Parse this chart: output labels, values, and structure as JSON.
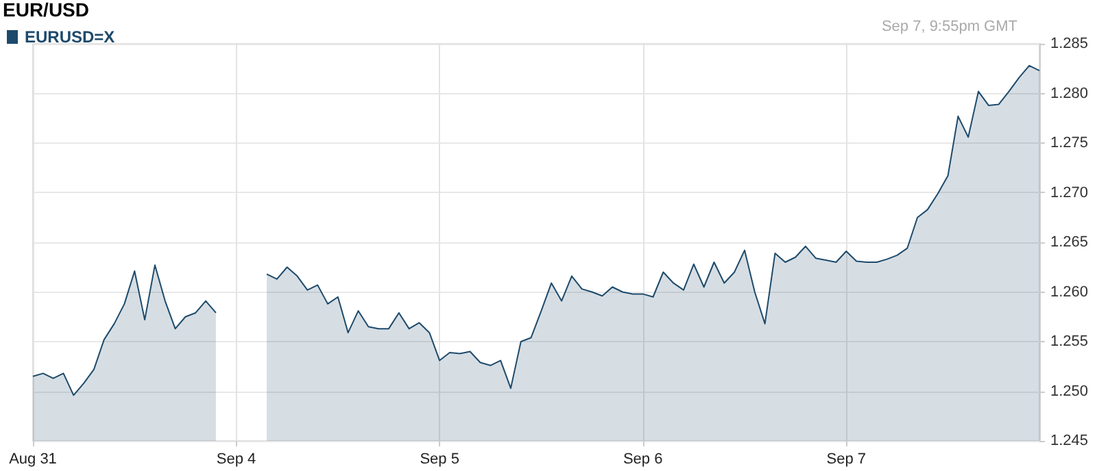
{
  "chart_data": {
    "type": "area",
    "title": "EUR/USD",
    "annotations": [
      "Sep 7, 9:55pm GMT"
    ],
    "legend": "top left",
    "grid": true,
    "marker": "none",
    "line_style": "solid",
    "categories": [
      "Aug 31",
      null,
      null,
      null,
      null,
      null,
      null,
      null,
      null,
      null,
      null,
      null,
      null,
      null,
      null,
      null,
      null,
      null,
      null,
      null,
      "Sep 4",
      null,
      null,
      null,
      null,
      null,
      null,
      null,
      null,
      null,
      null,
      null,
      null,
      null,
      null,
      null,
      null,
      null,
      null,
      null,
      "Sep 5",
      null,
      null,
      null,
      null,
      null,
      null,
      null,
      null,
      null,
      null,
      null,
      null,
      null,
      null,
      null,
      null,
      null,
      null,
      null,
      "Sep 6",
      null,
      null,
      null,
      null,
      null,
      null,
      null,
      null,
      null,
      null,
      null,
      null,
      null,
      null,
      null,
      null,
      null,
      null,
      null,
      "Sep 7",
      null,
      null,
      null,
      null,
      null,
      null,
      null,
      null,
      null,
      null,
      null,
      null,
      null,
      null,
      null,
      null,
      null,
      null,
      null
    ],
    "series": [
      {
        "name": "EURUSD=X",
        "color": "#1d4a6b",
        "values": [
          1.2515,
          1.2518,
          1.2513,
          1.2518,
          1.2496,
          1.2508,
          1.2522,
          1.2552,
          1.2568,
          1.2588,
          1.2621,
          1.2572,
          1.2627,
          1.2591,
          1.2563,
          1.2575,
          1.2579,
          1.2591,
          1.2579,
          null,
          null,
          null,
          null,
          1.2618,
          1.2613,
          1.2625,
          1.2616,
          1.2602,
          1.2607,
          1.2588,
          1.2595,
          1.2559,
          1.2581,
          1.2565,
          1.2563,
          1.2563,
          1.2579,
          1.2563,
          1.2569,
          1.2559,
          1.2531,
          1.2539,
          1.2538,
          1.254,
          1.2529,
          1.2526,
          1.2531,
          1.2503,
          1.255,
          1.2554,
          1.2581,
          1.2609,
          1.2591,
          1.2616,
          1.2603,
          1.26,
          1.2596,
          1.2605,
          1.26,
          1.2598,
          1.2598,
          1.2595,
          1.262,
          1.2609,
          1.2602,
          1.2628,
          1.2605,
          1.263,
          1.2609,
          1.262,
          1.2642,
          1.26,
          1.2568,
          1.2639,
          1.263,
          1.2635,
          1.2646,
          1.2634,
          1.2632,
          1.263,
          1.2641,
          1.2631,
          1.263,
          1.263,
          1.2633,
          1.2637,
          1.2644,
          1.2675,
          1.2683,
          1.2699,
          1.2717,
          1.2777,
          1.2756,
          1.2802,
          1.2788,
          1.2789,
          1.2802,
          1.2816,
          1.2828,
          1.2823
        ]
      }
    ],
    "ylim": [
      1.245,
      1.285
    ],
    "yticks": [
      1.245,
      {
        "value": 1.25,
        "label": "1.250"
      },
      1.255,
      {
        "value": 1.26,
        "label": "1.260"
      },
      1.265,
      {
        "value": 1.27,
        "label": "1.270"
      },
      1.275,
      {
        "value": 1.28,
        "label": "1.280"
      },
      1.285
    ]
  }
}
